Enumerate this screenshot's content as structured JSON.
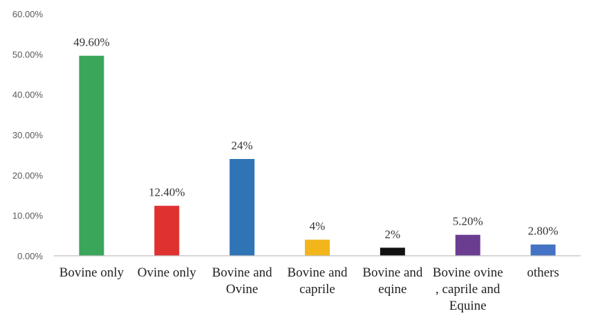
{
  "chart_data": {
    "type": "bar",
    "title": "",
    "xlabel": "",
    "ylabel": "",
    "ylim": [
      0,
      60
    ],
    "y_ticks": [
      {
        "value": 0,
        "label": "0.00%"
      },
      {
        "value": 10,
        "label": "10.00%"
      },
      {
        "value": 20,
        "label": "20.00%"
      },
      {
        "value": 30,
        "label": "30.00%"
      },
      {
        "value": 40,
        "label": "40.00%"
      },
      {
        "value": 50,
        "label": "50.00%"
      },
      {
        "value": 60,
        "label": "60.00%"
      }
    ],
    "grid": false,
    "legend": "none",
    "categories": [
      "Bovine  only",
      "Ovine only",
      "Bovine and Ovine",
      "Bovine and caprile",
      "Bovine  and eqine",
      "Bovine ovine , caprile and Equine",
      "others"
    ],
    "category_lines": [
      [
        "Bovine  only"
      ],
      [
        "Ovine only"
      ],
      [
        "Bovine and",
        "Ovine"
      ],
      [
        "Bovine and",
        "caprile"
      ],
      [
        "Bovine  and",
        "eqine"
      ],
      [
        "Bovine ovine",
        ", caprile and",
        "Equine"
      ],
      [
        "others"
      ]
    ],
    "values": [
      49.6,
      12.4,
      24,
      4,
      2,
      5.2,
      2.8
    ],
    "data_labels": [
      "49.60%",
      "12.40%",
      "24%",
      "4%",
      "2%",
      "5.20%",
      "2.80%"
    ],
    "colors": [
      "#3aa65a",
      "#e03131",
      "#2f74b5",
      "#f2b51c",
      "#111111",
      "#6a3d91",
      "#4472c4"
    ]
  }
}
